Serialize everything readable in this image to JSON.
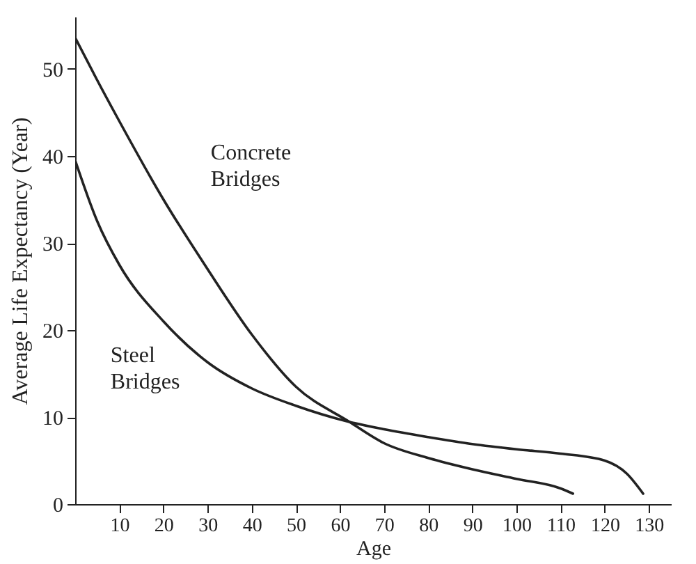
{
  "chart_data": {
    "type": "line",
    "xlabel": "Age",
    "ylabel": "Average Life Expectancy (Year)",
    "xlim": [
      0,
      135
    ],
    "xticks": [
      10,
      20,
      30,
      40,
      50,
      60,
      70,
      80,
      90,
      100,
      110,
      120,
      130
    ],
    "ylim": [
      0,
      56
    ],
    "yticks": [
      0,
      10,
      20,
      30,
      40,
      50
    ],
    "grid": false,
    "legend": false,
    "marker": "none",
    "line_style": "solid",
    "series": [
      {
        "name": "Concrete Bridges",
        "color": "#222222",
        "x": [
          0,
          5,
          10,
          20,
          30,
          40,
          50,
          62,
          70,
          80,
          90,
          100,
          110,
          112.8
        ],
        "values": [
          53.6,
          48.7,
          44,
          35,
          27,
          19.5,
          13.5,
          9.5,
          7,
          5.3,
          4.0,
          2.9,
          1.8,
          1.2
        ]
      },
      {
        "name": "Steel Bridges",
        "color": "#222222",
        "x": [
          0,
          5,
          10,
          20,
          30,
          40,
          50,
          61.7,
          70,
          80,
          90,
          100,
          110,
          120,
          125,
          128.7
        ],
        "values": [
          39.5,
          32.5,
          27.5,
          21,
          16.3,
          13.3,
          11.3,
          9.5,
          8.6,
          7.7,
          6.9,
          6.3,
          5.8,
          5.0,
          3.5,
          1.2
        ]
      }
    ]
  }
}
